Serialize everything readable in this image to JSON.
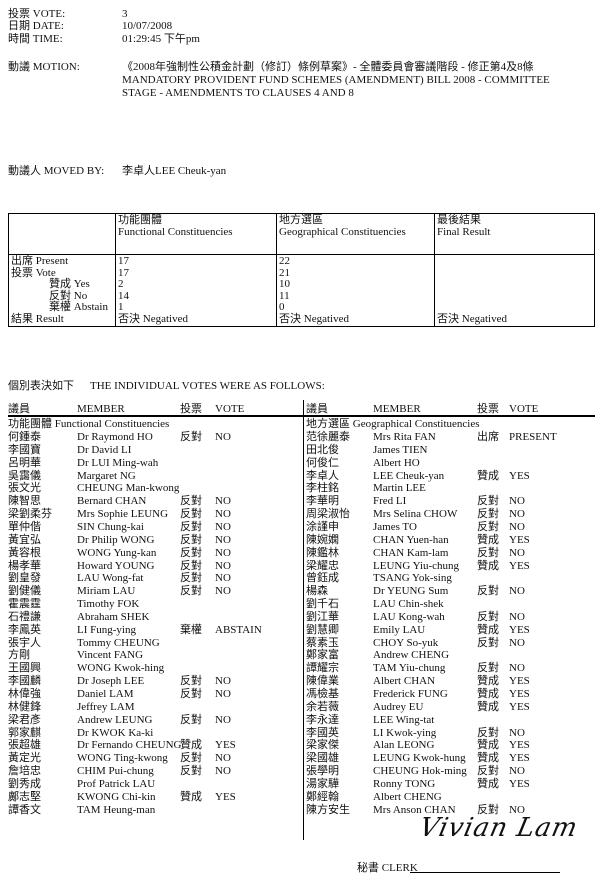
{
  "header": {
    "vote_label": "投票 VOTE:",
    "vote": "3",
    "date_label": "日期 DATE:",
    "date": "10/07/2008",
    "time_label": "時間 TIME:",
    "time": "01:29:45 下午pm",
    "motion_label": "動議 MOTION:",
    "motion_zh": "《2008年強制性公積金計劃（修訂）條例草案》- 全體委員會審議階段 - 修正第4及8條",
    "motion_en_1": "MANDATORY PROVIDENT FUND SCHEMES (AMENDMENT) BILL 2008 - COMMITTEE",
    "motion_en_2": "STAGE - AMENDMENTS TO CLAUSES 4 AND 8",
    "moved_by_label": "動議人 MOVED BY:",
    "moved_by": "李卓人LEE Cheuk-yan"
  },
  "summary": {
    "columns": [
      {
        "zh": "功能團體",
        "en": "Functional Constituencies"
      },
      {
        "zh": "地方選區",
        "en": "Geographical Constituencies"
      },
      {
        "zh": "最後結果",
        "en": "Final Result"
      }
    ],
    "row_labels": {
      "present": "出席 Present",
      "vote": "投票 Vote",
      "yes": "贊成 Yes",
      "no": "反對 No",
      "abstain": "棄權 Abstain",
      "result": "結果 Result"
    },
    "functional": {
      "present": "17",
      "vote": "17",
      "yes": "2",
      "no": "14",
      "abstain": "1",
      "result": "否決 Negatived"
    },
    "geographical": {
      "present": "22",
      "vote": "21",
      "yes": "10",
      "no": "11",
      "abstain": "0",
      "result": "否決 Negatived"
    },
    "final": {
      "result": "否決 Negatived"
    }
  },
  "individual": {
    "title_zh": "個別表決如下",
    "title_en": "THE INDIVIDUAL VOTES WERE AS FOLLOWS:",
    "col_member_zh": "議員",
    "col_member_en": "MEMBER",
    "col_vote_zh": "投票",
    "col_vote_en": "VOTE",
    "functional_label": "功能團體 Functional Constituencies",
    "geographical_label": "地方選區 Geographical Constituencies",
    "functional": [
      [
        "何鍾泰",
        "Dr Raymond HO",
        "反對",
        "NO"
      ],
      [
        "李國寶",
        "Dr David LI",
        "",
        ""
      ],
      [
        "呂明華",
        "Dr LUI Ming-wah",
        "",
        ""
      ],
      [
        "吳靄儀",
        "Margaret NG",
        "",
        ""
      ],
      [
        "張文光",
        "CHEUNG Man-kwong",
        "",
        ""
      ],
      [
        "陳智思",
        "Bernard CHAN",
        "反對",
        "NO"
      ],
      [
        "梁劉柔芬",
        "Mrs Sophie LEUNG",
        "反對",
        "NO"
      ],
      [
        "單仲偕",
        "SIN Chung-kai",
        "反對",
        "NO"
      ],
      [
        "黃宜弘",
        "Dr Philip WONG",
        "反對",
        "NO"
      ],
      [
        "黃容根",
        "WONG Yung-kan",
        "反對",
        "NO"
      ],
      [
        "楊孝華",
        "Howard YOUNG",
        "反對",
        "NO"
      ],
      [
        "劉皇發",
        "LAU Wong-fat",
        "反對",
        "NO"
      ],
      [
        "劉健儀",
        "Miriam LAU",
        "反對",
        "NO"
      ],
      [
        "霍震霆",
        "Timothy FOK",
        "",
        ""
      ],
      [
        "石禮謙",
        "Abraham SHEK",
        "",
        ""
      ],
      [
        "李鳳英",
        "LI Fung-ying",
        "棄權",
        "ABSTAIN"
      ],
      [
        "張宇人",
        "Tommy CHEUNG",
        "",
        ""
      ],
      [
        "方剛",
        "Vincent FANG",
        "",
        ""
      ],
      [
        "王國興",
        "WONG Kwok-hing",
        "",
        ""
      ],
      [
        "李國麟",
        "Dr Joseph LEE",
        "反對",
        "NO"
      ],
      [
        "林偉強",
        "Daniel LAM",
        "反對",
        "NO"
      ],
      [
        "林健鋒",
        "Jeffrey LAM",
        "",
        ""
      ],
      [
        "梁君彥",
        "Andrew LEUNG",
        "反對",
        "NO"
      ],
      [
        "郭家麒",
        "Dr KWOK Ka-ki",
        "",
        ""
      ],
      [
        "張超雄",
        "Dr Fernando CHEUNG",
        "贊成",
        "YES"
      ],
      [
        "黃定光",
        "WONG Ting-kwong",
        "反對",
        "NO"
      ],
      [
        "詹培忠",
        "CHIM Pui-chung",
        "反對",
        "NO"
      ],
      [
        "劉秀成",
        "Prof Patrick LAU",
        "",
        ""
      ],
      [
        "鄺志堅",
        "KWONG Chi-kin",
        "贊成",
        "YES"
      ],
      [
        "譚香文",
        "TAM Heung-man",
        "",
        ""
      ]
    ],
    "geographical": [
      [
        "范徐麗泰",
        "Mrs Rita FAN",
        "出席",
        "PRESENT"
      ],
      [
        "田北俊",
        "James TIEN",
        "",
        ""
      ],
      [
        "何俊仁",
        "Albert HO",
        "",
        ""
      ],
      [
        "李卓人",
        "LEE Cheuk-yan",
        "贊成",
        "YES"
      ],
      [
        "李柱銘",
        "Martin LEE",
        "",
        ""
      ],
      [
        "李華明",
        "Fred LI",
        "反對",
        "NO"
      ],
      [
        "周梁淑怡",
        "Mrs Selina CHOW",
        "反對",
        "NO"
      ],
      [
        "涂謹申",
        "James TO",
        "反對",
        "NO"
      ],
      [
        "陳婉嫻",
        "CHAN Yuen-han",
        "贊成",
        "YES"
      ],
      [
        "陳鑑林",
        "CHAN Kam-lam",
        "反對",
        "NO"
      ],
      [
        "梁耀忠",
        "LEUNG Yiu-chung",
        "贊成",
        "YES"
      ],
      [
        "曾鈺成",
        "TSANG Yok-sing",
        "",
        ""
      ],
      [
        "楊森",
        "Dr YEUNG Sum",
        "反對",
        "NO"
      ],
      [
        "劉千石",
        "LAU Chin-shek",
        "",
        ""
      ],
      [
        "劉江華",
        "LAU Kong-wah",
        "反對",
        "NO"
      ],
      [
        "劉慧卿",
        "Emily LAU",
        "贊成",
        "YES"
      ],
      [
        "蔡素玉",
        "CHOY So-yuk",
        "反對",
        "NO"
      ],
      [
        "鄭家富",
        "Andrew CHENG",
        "",
        ""
      ],
      [
        "譚耀宗",
        "TAM Yiu-chung",
        "反對",
        "NO"
      ],
      [
        "陳偉業",
        "Albert CHAN",
        "贊成",
        "YES"
      ],
      [
        "馮檢基",
        "Frederick FUNG",
        "贊成",
        "YES"
      ],
      [
        "余若薇",
        "Audrey EU",
        "贊成",
        "YES"
      ],
      [
        "李永達",
        "LEE Wing-tat",
        "",
        ""
      ],
      [
        "李國英",
        "LI Kwok-ying",
        "反對",
        "NO"
      ],
      [
        "梁家傑",
        "Alan LEONG",
        "贊成",
        "YES"
      ],
      [
        "梁國雄",
        "LEUNG Kwok-hung",
        "贊成",
        "YES"
      ],
      [
        "張學明",
        "CHEUNG Hok-ming",
        "反對",
        "NO"
      ],
      [
        "湯家驊",
        "Ronny TONG",
        "贊成",
        "YES"
      ],
      [
        "鄭經翰",
        "Albert CHENG",
        "",
        ""
      ],
      [
        "陳方安生",
        "Mrs Anson CHAN",
        "反對",
        "NO"
      ]
    ]
  },
  "clerk": {
    "label": "秘書 CLERK",
    "signature": "Vivian Lam"
  }
}
